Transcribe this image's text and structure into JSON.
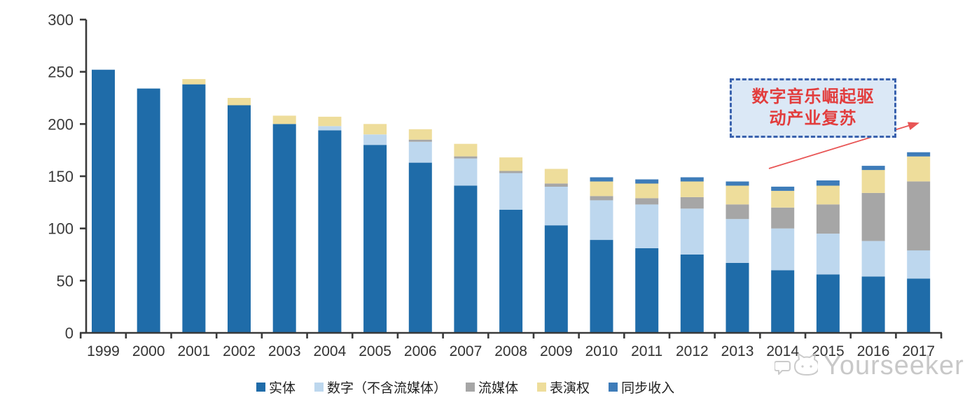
{
  "chart_data": {
    "type": "bar",
    "variant": "stacked",
    "title": "",
    "xlabel": "",
    "ylabel": "",
    "ylim": [
      0,
      300
    ],
    "ytick_step": 50,
    "grid": false,
    "legend_position": "bottom",
    "categories": [
      "1999",
      "2000",
      "2001",
      "2002",
      "2003",
      "2004",
      "2005",
      "2006",
      "2007",
      "2008",
      "2009",
      "2010",
      "2011",
      "2012",
      "2013",
      "2014",
      "2015",
      "2016",
      "2017"
    ],
    "series": [
      {
        "name": "实体",
        "color": "#1f6ca9",
        "values": [
          252,
          234,
          238,
          218,
          200,
          194,
          180,
          163,
          141,
          118,
          103,
          89,
          81,
          75,
          67,
          60,
          56,
          54,
          52
        ]
      },
      {
        "name": "数字（不含流媒体）",
        "color": "#bdd7ee",
        "values": [
          0,
          0,
          0,
          0,
          0,
          4,
          10,
          20,
          26,
          35,
          37,
          38,
          42,
          44,
          42,
          40,
          39,
          34,
          27
        ]
      },
      {
        "name": "流媒体",
        "color": "#a6a6a6",
        "values": [
          0,
          0,
          0,
          0,
          0,
          0,
          0,
          2,
          2,
          2,
          3,
          4,
          6,
          11,
          14,
          20,
          28,
          46,
          66
        ]
      },
      {
        "name": "表演权",
        "color": "#eedd9b",
        "values": [
          0,
          0,
          5,
          7,
          8,
          9,
          10,
          10,
          12,
          13,
          14,
          14,
          14,
          15,
          18,
          16,
          18,
          22,
          24
        ]
      },
      {
        "name": "同步收入",
        "color": "#3e7cb9",
        "values": [
          0,
          0,
          0,
          0,
          0,
          0,
          0,
          0,
          0,
          0,
          0,
          4,
          4,
          4,
          4,
          4,
          5,
          4,
          4
        ]
      }
    ]
  },
  "annotation": {
    "line1": "数字音乐崛起驱",
    "line2": "动产业复苏",
    "text_color": "#e23d3d",
    "box_fill": "#dbe8f6",
    "box_border_color": "#3a62ae",
    "arrow_color": "#e85555"
  },
  "watermark": {
    "text": "Yourseeker",
    "icon": "cat-face-with-speech-bubble-icon",
    "color": "#c6c6c6"
  },
  "colors": {
    "axis": "#3a3a3a",
    "background": "#ffffff"
  }
}
